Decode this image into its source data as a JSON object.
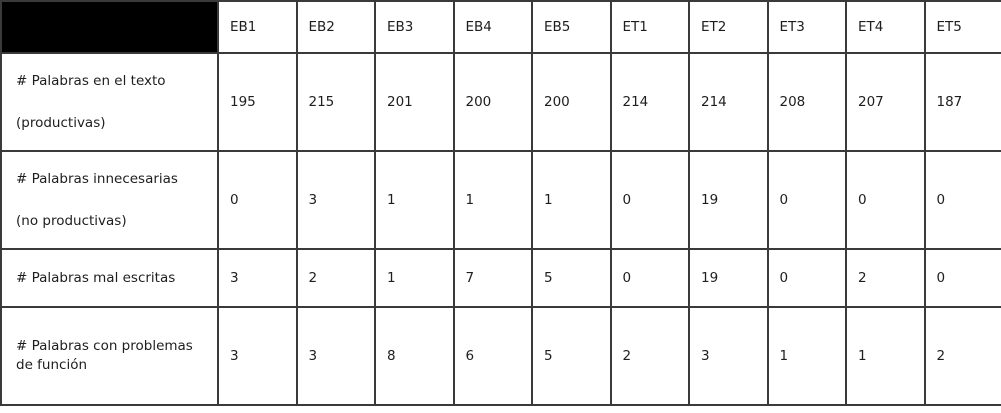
{
  "table": {
    "columns": [
      "EB1",
      "EB2",
      "EB3",
      "EB4",
      "EB5",
      "ET1",
      "ET2",
      "ET3",
      "ET4",
      "ET5"
    ],
    "rows": [
      {
        "label_line1": "# Palabras en el texto",
        "label_line2": "(productivas)",
        "values": [
          "195",
          "215",
          "201",
          "200",
          "200",
          "214",
          "214",
          "208",
          "207",
          "187"
        ]
      },
      {
        "label_line1": "# Palabras innecesarias",
        "label_line2": "(no productivas)",
        "values": [
          "0",
          "3",
          "1",
          "1",
          "1",
          "0",
          "19",
          "0",
          "0",
          "0"
        ]
      },
      {
        "label_line1": "# Palabras mal escritas",
        "label_line2": "",
        "values": [
          "3",
          "2",
          "1",
          "7",
          "5",
          "0",
          "19",
          "0",
          "2",
          "0"
        ]
      },
      {
        "label_line1": "# Palabras con problemas",
        "label_line2": "de función",
        "values": [
          "3",
          "3",
          "8",
          "6",
          "5",
          "2",
          "3",
          "1",
          "1",
          "2"
        ]
      }
    ]
  }
}
